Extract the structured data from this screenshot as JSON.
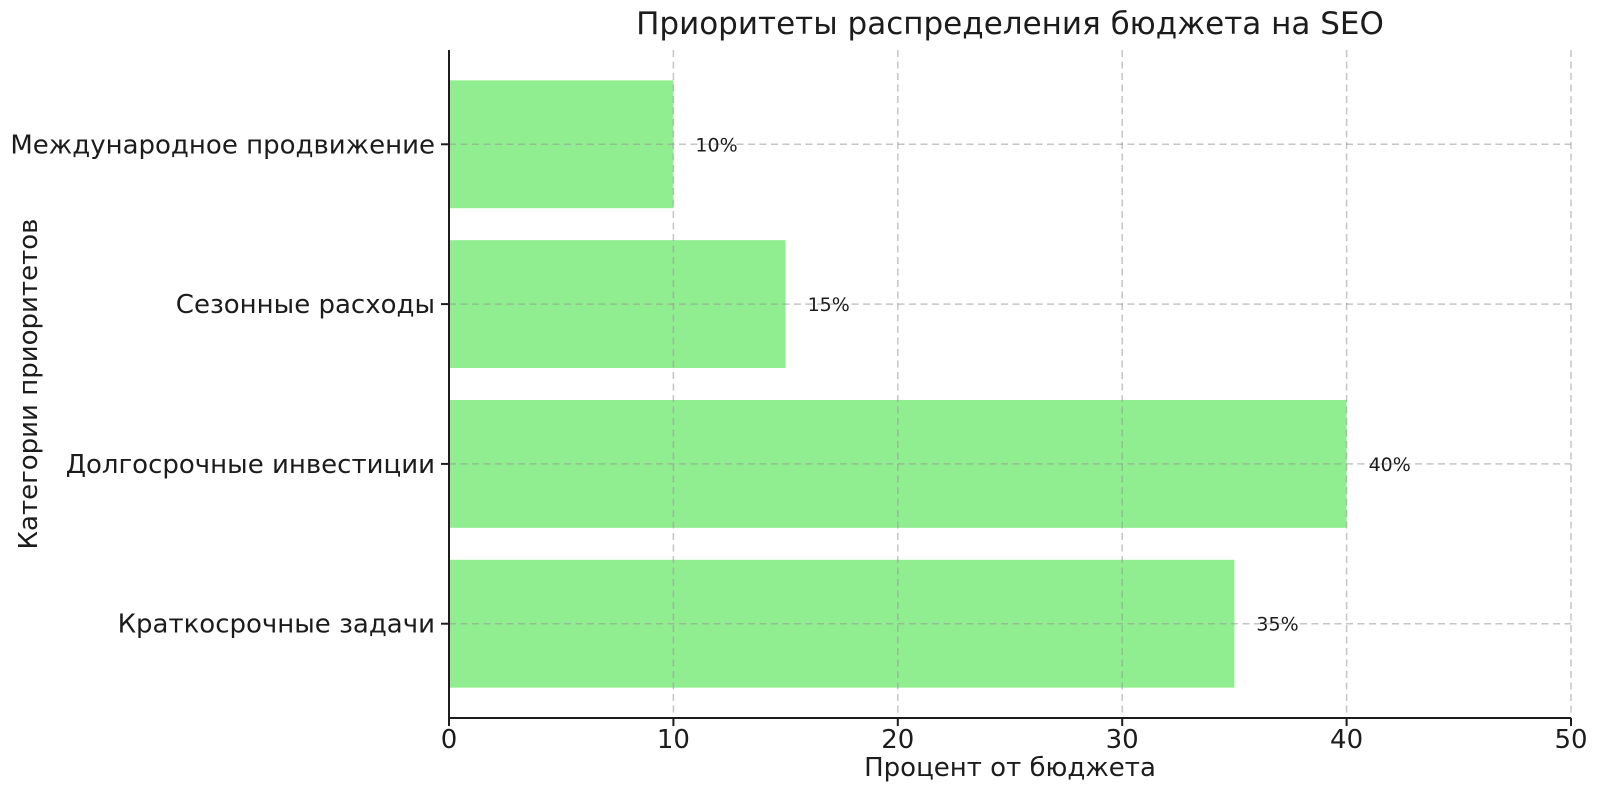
{
  "chart_data": {
    "type": "bar",
    "orientation": "horizontal",
    "title": "Приоритеты распределения бюджета на SEO",
    "xlabel": "Процент от бюджета",
    "ylabel": "Категории приоритетов",
    "categories": [
      "Международное продвижение",
      "Сезонные расходы",
      "Долгосрочные инвестиции",
      "Краткосрочные задачи"
    ],
    "values": [
      10,
      15,
      40,
      35
    ],
    "value_labels": [
      "10%",
      "15%",
      "40%",
      "35%"
    ],
    "xlim": [
      0,
      50
    ],
    "xticks": [
      0,
      10,
      20,
      30,
      40,
      50
    ],
    "xtick_labels": [
      "0",
      "10",
      "20",
      "30",
      "40",
      "50"
    ],
    "grid": true,
    "grid_style": "dashed",
    "legend_visible": false,
    "bar_color": "#90EE90",
    "grid_color": "rgba(150,150,150,0.55)",
    "axis_color": "#1c1c1c",
    "text_color": "#1c1c1c",
    "background_color": "#ffffff"
  }
}
